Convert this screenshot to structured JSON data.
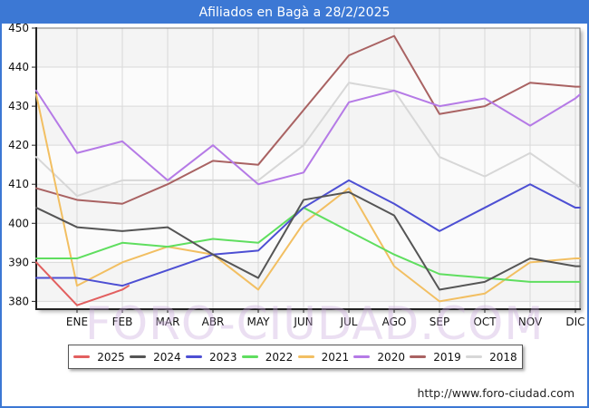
{
  "title": "Afiliados en Bagà a 28/2/2025",
  "watermark": {
    "text": "FORO-CIUDAD.COM"
  },
  "footer": {
    "url": "http://www.foro-ciudad.com"
  },
  "colors": {
    "header": "#3c78d4",
    "frame_border": "#3c78d4",
    "grid": "#d9d9d9",
    "axis": "#222222",
    "band_gray": "#f4f4f4",
    "band_white": "#fbfbfb",
    "label": "#111111"
  },
  "chart_data": {
    "type": "line",
    "title": "Afiliados en Bagà a 28/2/2025",
    "xlabel": "",
    "ylabel": "",
    "categories": [
      "ENE",
      "FEB",
      "MAR",
      "ABR",
      "MAY",
      "JUN",
      "JUL",
      "AGO",
      "SEP",
      "OCT",
      "NOV",
      "DIC"
    ],
    "ylim": [
      378,
      450
    ],
    "yticks": [
      450,
      440,
      430,
      420,
      410,
      400,
      390,
      380
    ],
    "grid": true,
    "legend_position": "bottom",
    "series": [
      {
        "name": "2025",
        "color": "#e25f5f",
        "edge_start": 390,
        "values": [
          379,
          383
        ],
        "edge_end": 384
      },
      {
        "name": "2024",
        "color": "#555555",
        "edge_start": 404,
        "values": [
          399,
          398,
          399,
          392,
          386,
          406,
          408,
          402,
          383,
          385,
          391,
          389
        ],
        "edge_end": 389
      },
      {
        "name": "2023",
        "color": "#4d4fd3",
        "edge_start": 386,
        "values": [
          386,
          384,
          388,
          392,
          393,
          404,
          411,
          405,
          398,
          404,
          410,
          404
        ],
        "edge_end": 404
      },
      {
        "name": "2022",
        "color": "#5fde5f",
        "edge_start": 391,
        "values": [
          391,
          395,
          394,
          396,
          395,
          404,
          398,
          392,
          387,
          386,
          385,
          385
        ],
        "edge_end": 385
      },
      {
        "name": "2021",
        "color": "#f2bf62",
        "edge_start": 433,
        "values": [
          384,
          390,
          394,
          392,
          383,
          400,
          409,
          389,
          380,
          382,
          390,
          391
        ],
        "edge_end": 391
      },
      {
        "name": "2020",
        "color": "#b57ae6",
        "edge_start": 434,
        "values": [
          418,
          421,
          411,
          420,
          410,
          413,
          431,
          434,
          430,
          432,
          425,
          432
        ],
        "edge_end": 433
      },
      {
        "name": "2019",
        "color": "#a96262",
        "edge_start": 409,
        "values": [
          406,
          405,
          410,
          416,
          415,
          429,
          443,
          448,
          428,
          430,
          436,
          435
        ],
        "edge_end": 435
      },
      {
        "name": "2018",
        "color": "#d7d7d7",
        "edge_start": 417,
        "values": [
          407,
          411,
          411,
          411,
          411,
          420,
          436,
          434,
          417,
          412,
          418,
          410
        ],
        "edge_end": 409
      }
    ]
  }
}
